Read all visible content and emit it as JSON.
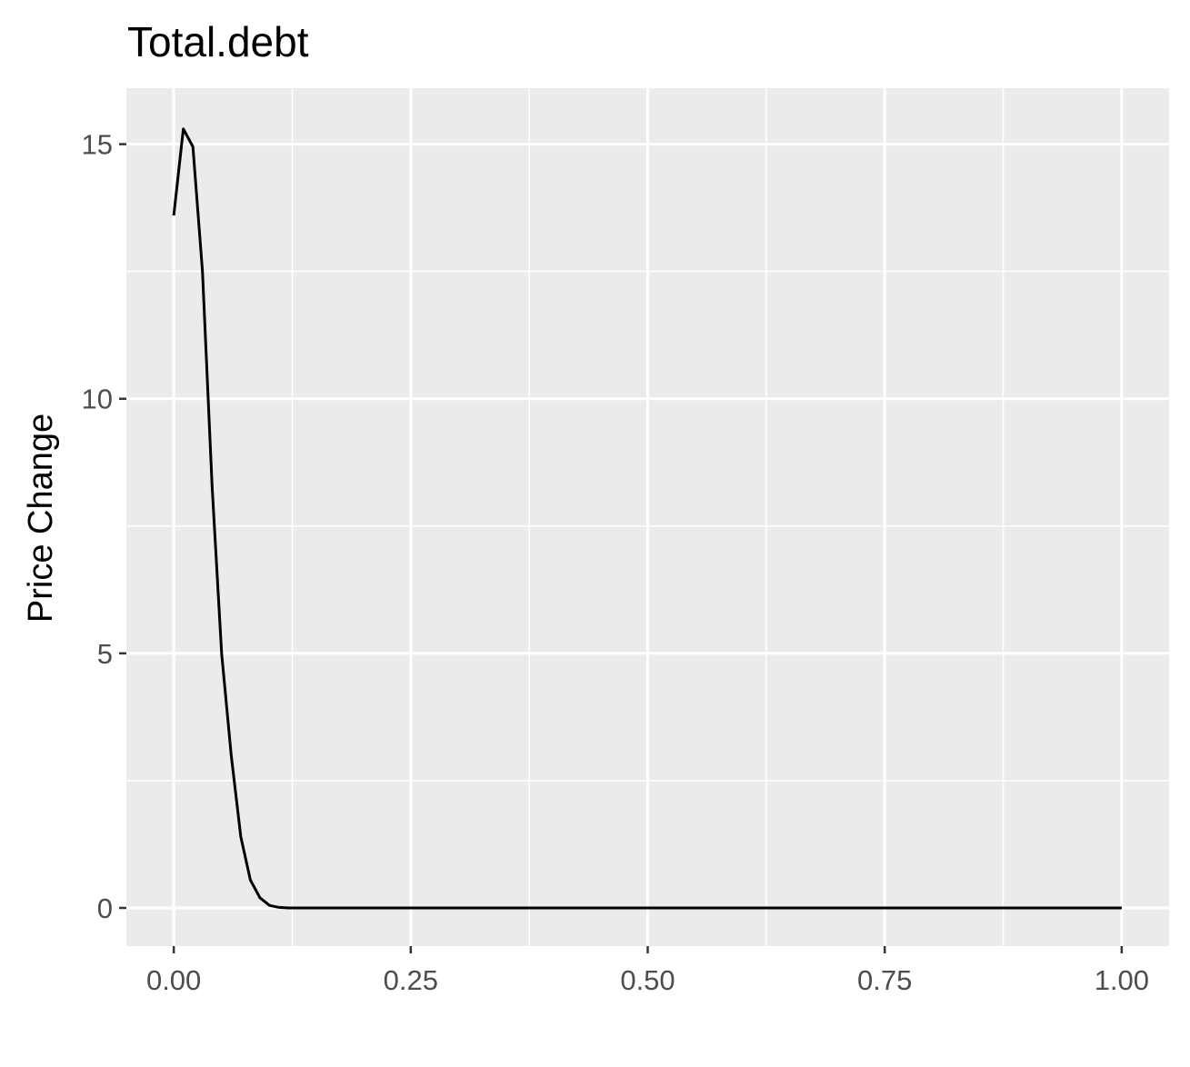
{
  "chart_data": {
    "type": "line",
    "title": "Total.debt",
    "xlabel": "",
    "ylabel": "Price Change",
    "xlim": [
      -0.05,
      1.05
    ],
    "ylim": [
      -0.75,
      16.1
    ],
    "x_ticks": [
      0.0,
      0.25,
      0.5,
      0.75,
      1.0
    ],
    "x_tick_labels": [
      "0.00",
      "0.25",
      "0.50",
      "0.75",
      "1.00"
    ],
    "y_ticks": [
      0,
      5,
      10,
      15
    ],
    "y_tick_labels": [
      "0",
      "5",
      "10",
      "15"
    ],
    "grid": true,
    "legend": "none",
    "colors": {
      "panel": "#ebebeb",
      "grid": "#ffffff",
      "line": "#000000",
      "tick": "#333333"
    },
    "series": [
      {
        "x": [
          0.0,
          0.0101,
          0.0202,
          0.0303,
          0.0404,
          0.0505,
          0.0606,
          0.0707,
          0.0808,
          0.0909,
          0.101,
          0.1111,
          0.1212,
          0.1313,
          0.15,
          0.2,
          0.3,
          0.4,
          0.5,
          0.6,
          0.7,
          0.8,
          0.9,
          1.0
        ],
        "y": [
          13.6,
          15.3,
          14.95,
          12.5,
          8.3,
          5.0,
          3.0,
          1.4,
          0.55,
          0.2,
          0.05,
          0.01,
          0.0,
          0.0,
          0.0,
          0.0,
          0.0,
          0.0,
          0.0,
          0.0,
          0.0,
          0.0,
          0.0,
          0.0
        ]
      }
    ]
  }
}
